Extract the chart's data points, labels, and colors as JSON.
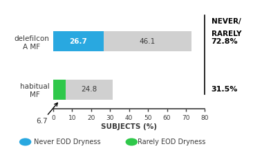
{
  "categories": [
    "delefilcon\nA MF",
    "habitual\nMF"
  ],
  "never_values": [
    26.7,
    6.7
  ],
  "rarely_values": [
    46.1,
    24.8
  ],
  "never_color": "#29a8e0",
  "rarely_color": "#d0d0d0",
  "green_color": "#2fc84a",
  "total_labels": [
    "72.8%",
    "31.5%"
  ],
  "annotation_6_7": "6.7",
  "xlabel": "SUBJECTS (%)",
  "xlim": [
    0,
    80
  ],
  "xticks": [
    0,
    10,
    20,
    30,
    40,
    50,
    60,
    70,
    80
  ],
  "right_header_line1": "NEVER/",
  "right_header_line2": "RARELY",
  "legend_never": "Never EOD Dryness",
  "legend_rarely": "Rarely EOD Dryness",
  "bar_height": 0.42,
  "figsize": [
    3.66,
    2.18
  ],
  "dpi": 100,
  "bg_color": "#ffffff",
  "text_color": "#3a3a3a",
  "axis_color": "#3a3a3a"
}
